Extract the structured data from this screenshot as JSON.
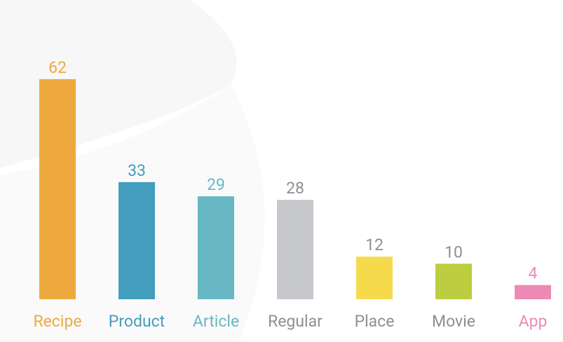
{
  "chart_data": {
    "type": "bar",
    "categories": [
      "Recipe",
      "Product",
      "Article",
      "Regular",
      "Place",
      "Movie",
      "App"
    ],
    "values": [
      62,
      33,
      29,
      28,
      12,
      10,
      4
    ],
    "colors": [
      "#eda93e",
      "#439dbd",
      "#67b8c4",
      "#c6c8cb",
      "#f5db4c",
      "#bccd3f",
      "#ec8ab5"
    ],
    "label_colors": [
      "#eda93e",
      "#439dbd",
      "#67b8c4",
      "#8c8f93",
      "#8c8f93",
      "#8c8f93",
      "#ec8ab5"
    ]
  }
}
